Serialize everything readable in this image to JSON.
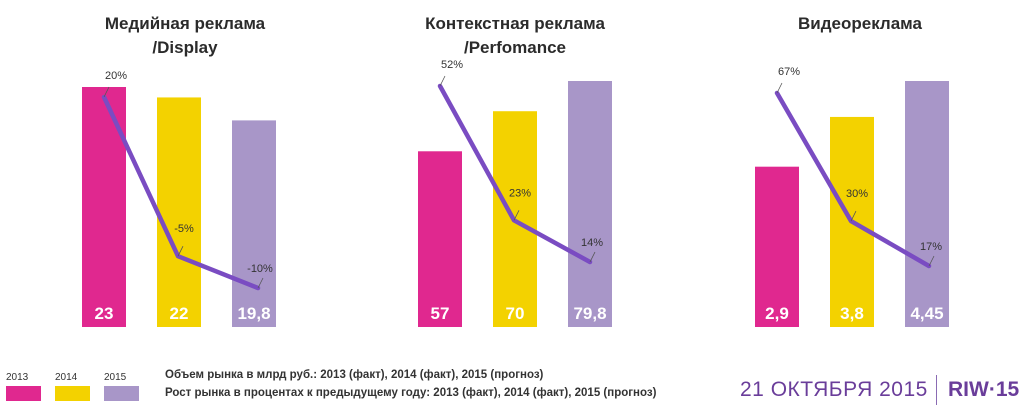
{
  "colors": {
    "2013": "#e0288f",
    "2014": "#f3d200",
    "2015": "#a896c8",
    "line": "#7a4cc2",
    "footer": "#6a3d9a"
  },
  "chart_data": [
    {
      "type": "bar",
      "title_line1": "Медийная реклама",
      "title_line2": "/Display",
      "categories": [
        "2013",
        "2014",
        "2015"
      ],
      "series": [
        {
          "name": "Объем рынка в млрд руб.: 2013 (факт), 2014 (факт), 2015 (прогноз)",
          "values": [
            23,
            22,
            19.8
          ]
        }
      ],
      "value_labels": [
        "23",
        "22",
        "19,8"
      ],
      "growth": [
        20,
        -5,
        -10
      ],
      "growth_labels": [
        "20%",
        "-5%",
        "-10%"
      ]
    },
    {
      "type": "bar",
      "title_line1": "Контекстная реклама",
      "title_line2": "/Perfomance",
      "categories": [
        "2013",
        "2014",
        "2015"
      ],
      "series": [
        {
          "name": "Объем рынка в млрд руб.: 2013 (факт), 2014 (факт), 2015 (прогноз)",
          "values": [
            57,
            70,
            79.8
          ]
        }
      ],
      "value_labels": [
        "57",
        "70",
        "79,8"
      ],
      "growth": [
        52,
        23,
        14
      ],
      "growth_labels": [
        "52%",
        "23%",
        "14%"
      ]
    },
    {
      "type": "bar",
      "title_line1": "Видеореклама",
      "title_line2": "",
      "categories": [
        "2013",
        "2014",
        "2015"
      ],
      "series": [
        {
          "name": "Объем рынка в млрд руб.: 2013 (факт), 2014 (факт), 2015 (прогноз)",
          "values": [
            2.9,
            3.8,
            4.45
          ]
        }
      ],
      "value_labels": [
        "2,9",
        "3,8",
        "4,45"
      ],
      "growth": [
        67,
        30,
        17
      ],
      "growth_labels": [
        "67%",
        "30%",
        "17%"
      ]
    }
  ],
  "legend": {
    "years": [
      "2013",
      "2014",
      "2015"
    ],
    "note_volume": "Объем рынка в млрд руб.: 2013 (факт), 2014 (факт), 2015 (прогноз)",
    "note_growth": "Рост рынка в процентах к предыдущему году: 2013 (факт), 2014 (факт), 2015 (прогноз)"
  },
  "footer": {
    "date": "21 ОКТЯБРЯ 2015",
    "brand": "RIW·15"
  }
}
